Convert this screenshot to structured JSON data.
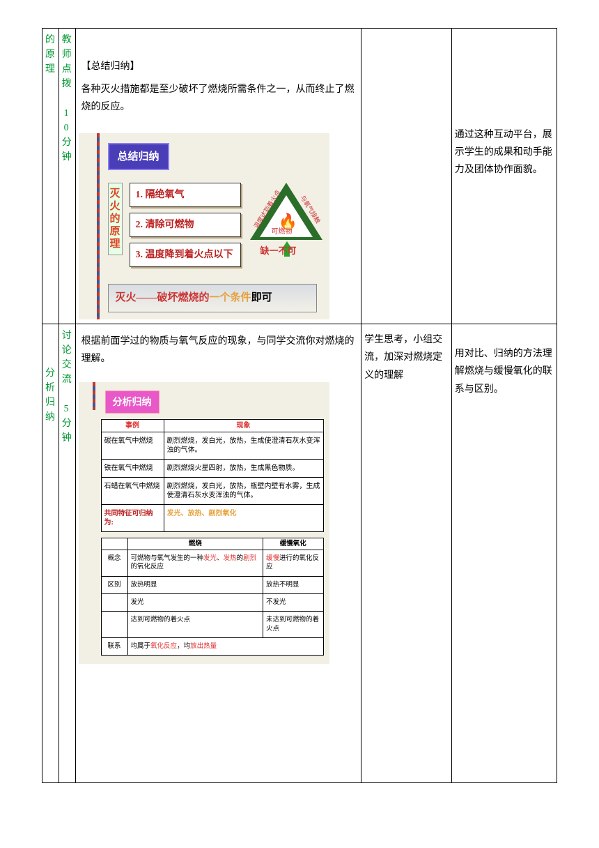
{
  "row1": {
    "colA": [
      "的",
      "原",
      "理"
    ],
    "colB": [
      "教",
      "师",
      "点",
      "拨",
      "",
      "1",
      "0",
      "分",
      "钟"
    ],
    "summary_title": "【总结归纳】",
    "summary_text": "各种灭火措施都是至少破坏了燃烧所需条件之一，从而终止了燃烧的反应。",
    "slide": {
      "badge": "总结归纳",
      "side_label": [
        "灭",
        "火",
        "的",
        "原",
        "理"
      ],
      "rules": [
        "1. 隔绝氧气",
        "2. 清除可燃物",
        "3. 温度降到着火点以下"
      ],
      "tri_left": "温度达到着火点",
      "tri_right": "与氧气接触",
      "tri_base": "可燃物",
      "missing": "缺一不可",
      "bottom_pre": "灭火——破坏燃烧的",
      "bottom_accent": "一个条件",
      "bottom_post": "即可"
    },
    "colE": "通过这种互动平台，展示学生的成果和动手能力及团体协作面貌。"
  },
  "row2": {
    "colA": [
      "分",
      "析",
      "归",
      "纳"
    ],
    "colB": [
      "讨",
      "论",
      "交",
      "流",
      "",
      "5",
      "分",
      "钟"
    ],
    "intro": "根据前面学过的物质与氧气反应的现象，与同学交流你对燃烧的理解。",
    "slide": {
      "badge": "分析归纳",
      "t1": {
        "h1": "事例",
        "h2": "现象",
        "rows": [
          [
            "碳在氧气中燃烧",
            "剧烈燃烧，发白光，放热，生成使澄清石灰水变浑浊的气体。"
          ],
          [
            "铁在氧气中燃烧",
            "剧烈燃烧火星四射，放热，生成黑色物质。"
          ],
          [
            "石蜡在氧气中燃烧",
            "剧烈燃烧，发白光，放热，瓶壁内壁有水雾，生成使澄清石灰水变浑浊的气体。"
          ]
        ],
        "footer_label": "共同特征可归纳为:",
        "footer_val": "发光、放热、剧烈氧化"
      },
      "t2": {
        "h1": "燃烧",
        "h2": "缓慢氧化",
        "rows": [
          [
            "概念",
            "可燃物与氧气发生的一种<r>发光</r>、<r>发热</r>的<r>剧烈</r>的氧化反应",
            "<r>缓慢</r>进行的氧化反应"
          ],
          [
            "区别",
            "放热明显",
            "放热不明显"
          ],
          [
            "",
            "发光",
            "不发光"
          ],
          [
            "",
            "达到可燃物的着火点",
            "未达到可燃物的着火点"
          ],
          [
            "联系",
            "均属于<r>氧化反应</r>，均<r>放出热量</r>",
            ""
          ]
        ]
      }
    },
    "colD": "学生思考，小组交流，加深对燃烧定义的理解",
    "colE": "用对比、归纳的方法理解燃烧与缓慢氧化的联系与区别。"
  }
}
